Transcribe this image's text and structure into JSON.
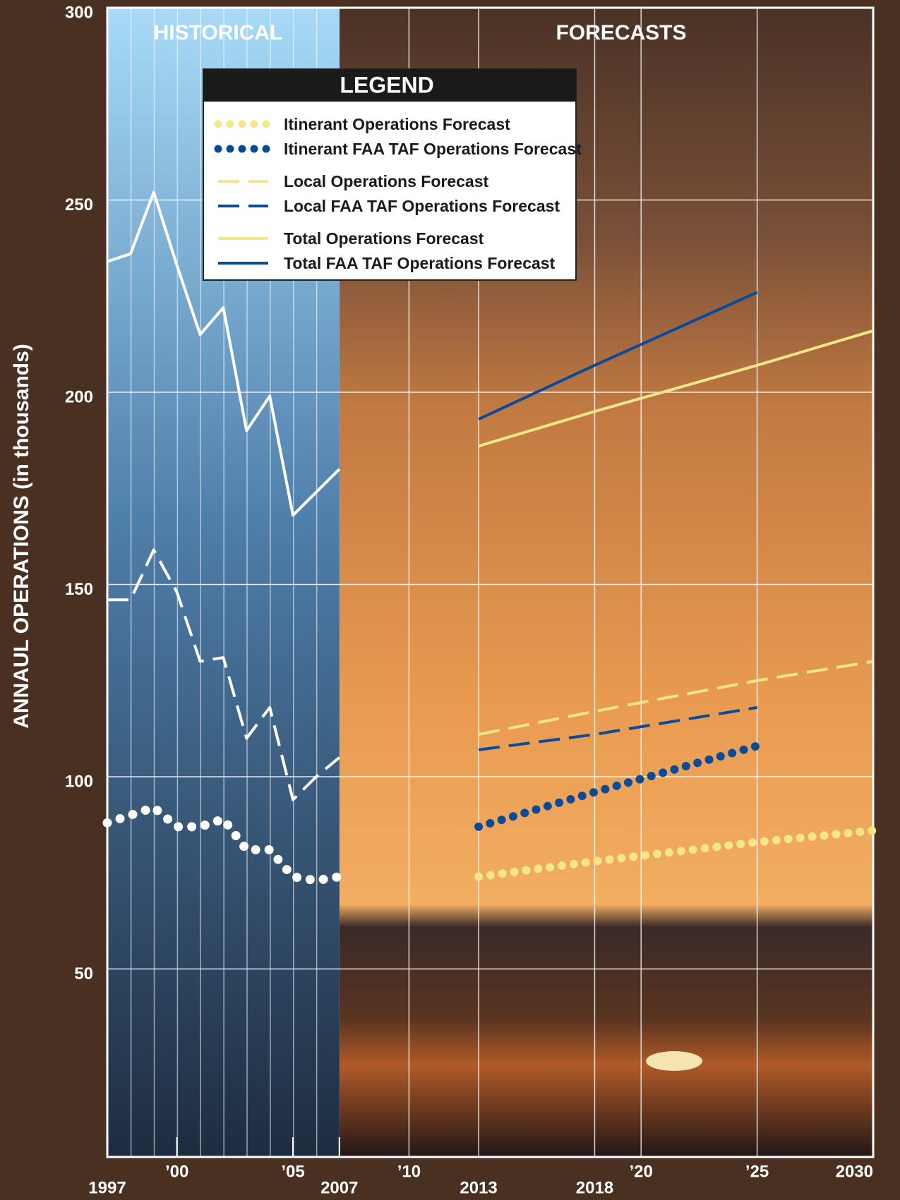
{
  "chart_data": {
    "type": "line",
    "y_label": "ANNAUL OPERATIONS (in thousands)",
    "sections": [
      "HISTORICAL",
      "FORECASTS"
    ],
    "legend_title": "LEGEND",
    "xlim": [
      1997,
      2030
    ],
    "xticks": [
      1997,
      {
        "value": 2000,
        "label": "’00"
      },
      {
        "value": 2005,
        "label": "’05"
      },
      2007,
      {
        "value": 2010,
        "label": "’10"
      },
      2013,
      2018,
      {
        "value": 2020,
        "label": "’20"
      },
      {
        "value": 2025,
        "label": "’25"
      },
      2030
    ],
    "ylim": [
      0,
      300
    ],
    "yticks": [
      50,
      100,
      150,
      200,
      250,
      300
    ],
    "grid": true,
    "series": [
      {
        "color": "#ffffff",
        "style": "solid",
        "x": [
          1997,
          1998,
          1999,
          2000,
          2001,
          2002,
          2003,
          2004,
          2005,
          2006,
          2007
        ],
        "values": [
          234,
          236,
          252,
          233,
          215,
          222,
          190,
          199,
          168,
          174,
          180
        ]
      },
      {
        "color": "#ffffff",
        "style": "dashed",
        "x": [
          1997,
          1998,
          1999,
          2000,
          2001,
          2002,
          2003,
          2004,
          2005,
          2006,
          2007
        ],
        "values": [
          146,
          146,
          159,
          148,
          130,
          131,
          110,
          118,
          94,
          100,
          105
        ]
      },
      {
        "color": "#ffffff",
        "style": "dotted",
        "x": [
          1997,
          1998,
          1999,
          2000,
          2001,
          2002,
          2003,
          2004,
          2005,
          2006,
          2007
        ],
        "values": [
          88,
          90,
          92,
          87,
          87,
          89,
          81,
          81,
          74,
          73,
          74
        ]
      },
      {
        "name": "Itinerant Operations Forecast",
        "color": "#f5e68a",
        "style": "dotted",
        "x": [
          2013,
          2018,
          2025,
          2030
        ],
        "values": [
          74,
          78,
          83,
          86
        ]
      },
      {
        "name": "Itinerant FAA TAF Operations Forecast",
        "color": "#0a4a9a",
        "style": "dotted",
        "x": [
          2013,
          2018,
          2025
        ],
        "values": [
          87,
          96,
          108
        ]
      },
      {
        "name": "Local Operations Forecast",
        "color": "#f5e68a",
        "style": "dashed",
        "x": [
          2013,
          2018,
          2025,
          2030
        ],
        "values": [
          111,
          117,
          125,
          130
        ]
      },
      {
        "name": "Local FAA TAF Operations Forecast",
        "color": "#0a4a9a",
        "style": "dashed",
        "x": [
          2013,
          2018,
          2025
        ],
        "values": [
          107,
          111,
          118
        ]
      },
      {
        "name": "Total Operations Forecast",
        "color": "#f5e68a",
        "style": "solid",
        "x": [
          2013,
          2018,
          2025,
          2030
        ],
        "values": [
          186,
          195,
          207,
          216
        ]
      },
      {
        "name": "Total FAA TAF Operations Forecast",
        "color": "#0a4a9a",
        "style": "solid",
        "x": [
          2013,
          2018,
          2025
        ],
        "values": [
          193,
          207,
          226
        ]
      }
    ]
  }
}
